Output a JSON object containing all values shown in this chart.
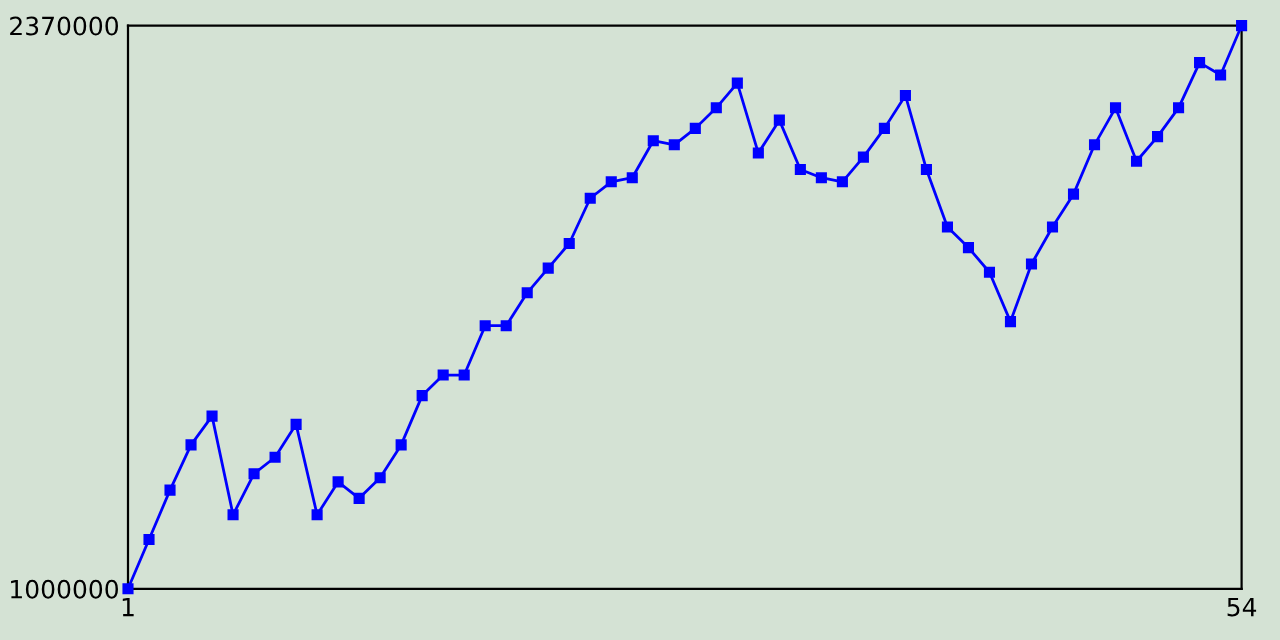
{
  "chart_data": {
    "type": "line",
    "x": [
      1,
      2,
      3,
      4,
      5,
      6,
      7,
      8,
      9,
      10,
      11,
      12,
      13,
      14,
      15,
      16,
      17,
      18,
      19,
      20,
      21,
      22,
      23,
      24,
      25,
      26,
      27,
      28,
      29,
      30,
      31,
      32,
      33,
      34,
      35,
      36,
      37,
      38,
      39,
      40,
      41,
      42,
      43,
      44,
      45,
      46,
      47,
      48,
      49,
      50,
      51,
      52,
      53,
      54
    ],
    "series": [
      {
        "color": "#0000ff",
        "values": [
          1000000,
          1120000,
          1240000,
          1350000,
          1420000,
          1180000,
          1280000,
          1320000,
          1400000,
          1180000,
          1260000,
          1220000,
          1270000,
          1350000,
          1470000,
          1520000,
          1520000,
          1640000,
          1640000,
          1720000,
          1780000,
          1840000,
          1950000,
          1990000,
          2000000,
          2090000,
          2080000,
          2120000,
          2170000,
          2230000,
          2060000,
          2140000,
          2020000,
          2000000,
          1990000,
          2050000,
          2120000,
          2200000,
          2020000,
          1880000,
          1830000,
          1770000,
          1650000,
          1790000,
          1880000,
          1960000,
          2080000,
          2170000,
          2040000,
          2100000,
          2170000,
          2280000,
          2250000,
          2370000
        ]
      }
    ],
    "xlim": [
      1,
      54
    ],
    "xticks": [
      1,
      54
    ],
    "ylim": [
      1000000,
      2370000
    ],
    "yticks": [
      1000000,
      2370000
    ],
    "marker": "square",
    "line_style": "solid",
    "grid": false,
    "legend": false
  }
}
